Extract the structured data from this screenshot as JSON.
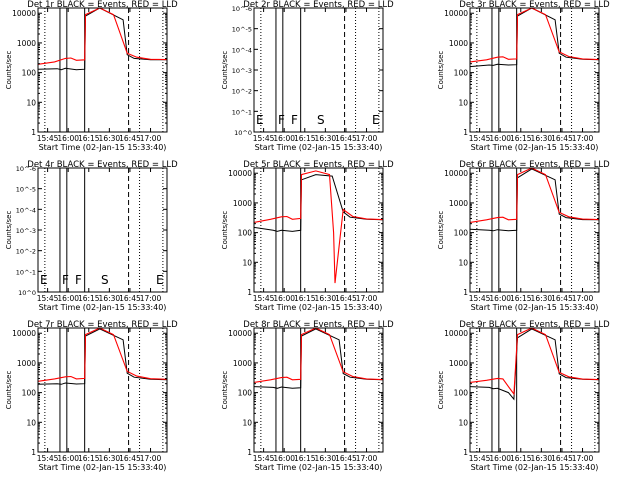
{
  "chart_data": {
    "type": "line",
    "x_tick_labels": [
      "15:45",
      "16:00",
      "16:15",
      "16:30",
      "16:45",
      "17:00"
    ],
    "x_tick_minutes": [
      945,
      960,
      975,
      990,
      1005,
      1020
    ],
    "xlim_minutes": [
      938,
      1032
    ],
    "xlabel": "Start Time (02-Jan-15 15:33:40)",
    "ylabel": "Counts/sec",
    "yscale": "log",
    "ylim": [
      1,
      15000
    ],
    "y_tick_labels": [
      "1",
      "10",
      "100",
      "1000",
      "10000"
    ],
    "sci_tick_labels": [
      "10^0",
      "10^-1",
      "10^-2",
      "10^-3",
      "10^-4",
      "10^-5",
      "10^-6"
    ],
    "series_colors": {
      "events": "#000000",
      "lld": "#ff0000"
    },
    "vertical_lines": {
      "solid_minutes": [
        954,
        959,
        972
      ],
      "dashed_minutes": [
        1004
      ],
      "dotted_minutes": [
        943,
        1012,
        1029
      ]
    },
    "markers": [
      "E",
      "F",
      "F",
      "S",
      "E"
    ],
    "panels": [
      {
        "title": "Det 1r BLACK = Events, RED = LLD",
        "axis": "counts",
        "events": [
          [
            938,
            130
          ],
          [
            952,
            135
          ],
          [
            955,
            125
          ],
          [
            958,
            140
          ],
          [
            966,
            125
          ],
          [
            972,
            130
          ],
          [
            972.6,
            8000
          ],
          [
            983,
            15000
          ],
          [
            1000,
            6000
          ],
          [
            1003,
            400
          ],
          [
            1008,
            300
          ],
          [
            1020,
            270
          ],
          [
            1032,
            270
          ]
        ],
        "lld": [
          [
            938,
            190
          ],
          [
            950,
            230
          ],
          [
            958,
            300
          ],
          [
            962,
            310
          ],
          [
            966,
            260
          ],
          [
            972,
            270
          ],
          [
            972.6,
            9000
          ],
          [
            983,
            15000
          ],
          [
            993,
            9000
          ],
          [
            1003,
            450
          ],
          [
            1010,
            330
          ],
          [
            1020,
            280
          ],
          [
            1032,
            275
          ]
        ],
        "show_markers": false
      },
      {
        "title": "Det 2r BLACK = Events, RED = LLD",
        "axis": "sci",
        "events": [],
        "lld": [],
        "show_markers": true
      },
      {
        "title": "Det 3r BLACK = Events, RED = LLD",
        "axis": "counts",
        "events": [
          [
            938,
            160
          ],
          [
            952,
            180
          ],
          [
            955,
            175
          ],
          [
            958,
            190
          ],
          [
            966,
            180
          ],
          [
            972,
            185
          ],
          [
            972.6,
            8000
          ],
          [
            983,
            15000
          ],
          [
            1000,
            6000
          ],
          [
            1003,
            450
          ],
          [
            1008,
            330
          ],
          [
            1020,
            280
          ],
          [
            1032,
            270
          ]
        ],
        "lld": [
          [
            938,
            230
          ],
          [
            950,
            270
          ],
          [
            958,
            330
          ],
          [
            962,
            340
          ],
          [
            966,
            280
          ],
          [
            972,
            290
          ],
          [
            972.6,
            9000
          ],
          [
            983,
            15000
          ],
          [
            993,
            9000
          ],
          [
            1003,
            500
          ],
          [
            1010,
            350
          ],
          [
            1020,
            290
          ],
          [
            1032,
            275
          ]
        ],
        "show_markers": false
      },
      {
        "title": "Det 4r BLACK = Events, RED = LLD",
        "axis": "sci",
        "events": [],
        "lld": [],
        "show_markers": true
      },
      {
        "title": "Det 5r BLACK = Events, RED = LLD",
        "axis": "counts",
        "events": [
          [
            938,
            150
          ],
          [
            952,
            120
          ],
          [
            955,
            110
          ],
          [
            958,
            120
          ],
          [
            966,
            110
          ],
          [
            972,
            120
          ],
          [
            972.6,
            6000
          ],
          [
            983,
            9000
          ],
          [
            995,
            8000
          ],
          [
            1003,
            500
          ],
          [
            1008,
            330
          ],
          [
            1020,
            280
          ],
          [
            1032,
            270
          ]
        ],
        "lld": [
          [
            938,
            220
          ],
          [
            950,
            280
          ],
          [
            958,
            340
          ],
          [
            962,
            350
          ],
          [
            966,
            280
          ],
          [
            972,
            300
          ],
          [
            972.6,
            9000
          ],
          [
            983,
            12000
          ],
          [
            993,
            9000
          ],
          [
            996,
            100
          ],
          [
            997,
            2
          ],
          [
            1003,
            600
          ],
          [
            1010,
            350
          ],
          [
            1020,
            290
          ],
          [
            1032,
            275
          ]
        ],
        "show_markers": false
      },
      {
        "title": "Det 6r BLACK = Events, RED = LLD",
        "axis": "counts",
        "events": [
          [
            938,
            130
          ],
          [
            952,
            120
          ],
          [
            955,
            115
          ],
          [
            958,
            125
          ],
          [
            966,
            115
          ],
          [
            972,
            120
          ],
          [
            972.6,
            7000
          ],
          [
            983,
            14000
          ],
          [
            1000,
            6000
          ],
          [
            1003,
            420
          ],
          [
            1008,
            320
          ],
          [
            1020,
            275
          ],
          [
            1032,
            270
          ]
        ],
        "lld": [
          [
            938,
            220
          ],
          [
            950,
            270
          ],
          [
            958,
            320
          ],
          [
            962,
            330
          ],
          [
            966,
            270
          ],
          [
            972,
            280
          ],
          [
            972.6,
            9000
          ],
          [
            983,
            15000
          ],
          [
            993,
            9000
          ],
          [
            1003,
            480
          ],
          [
            1010,
            340
          ],
          [
            1020,
            285
          ],
          [
            1032,
            275
          ]
        ],
        "show_markers": false
      },
      {
        "title": "Det 7r BLACK = Events, RED = LLD",
        "axis": "counts",
        "events": [
          [
            938,
            190
          ],
          [
            952,
            200
          ],
          [
            955,
            190
          ],
          [
            958,
            210
          ],
          [
            966,
            195
          ],
          [
            972,
            200
          ],
          [
            972.6,
            8000
          ],
          [
            983,
            14000
          ],
          [
            1000,
            6000
          ],
          [
            1003,
            450
          ],
          [
            1008,
            330
          ],
          [
            1020,
            280
          ],
          [
            1032,
            270
          ]
        ],
        "lld": [
          [
            938,
            240
          ],
          [
            950,
            290
          ],
          [
            958,
            340
          ],
          [
            962,
            350
          ],
          [
            966,
            290
          ],
          [
            972,
            300
          ],
          [
            972.6,
            9000
          ],
          [
            983,
            15000
          ],
          [
            993,
            9000
          ],
          [
            1003,
            520
          ],
          [
            1010,
            360
          ],
          [
            1020,
            295
          ],
          [
            1032,
            280
          ]
        ],
        "show_markers": false
      },
      {
        "title": "Det 8r BLACK = Events, RED = LLD",
        "axis": "counts",
        "events": [
          [
            938,
            160
          ],
          [
            952,
            150
          ],
          [
            955,
            140
          ],
          [
            958,
            155
          ],
          [
            966,
            140
          ],
          [
            972,
            145
          ],
          [
            972.6,
            8000
          ],
          [
            983,
            14000
          ],
          [
            1000,
            6000
          ],
          [
            1003,
            440
          ],
          [
            1008,
            330
          ],
          [
            1020,
            280
          ],
          [
            1032,
            270
          ]
        ],
        "lld": [
          [
            938,
            220
          ],
          [
            950,
            270
          ],
          [
            958,
            320
          ],
          [
            962,
            330
          ],
          [
            966,
            270
          ],
          [
            972,
            280
          ],
          [
            972.6,
            9000
          ],
          [
            983,
            15000
          ],
          [
            993,
            9000
          ],
          [
            1003,
            500
          ],
          [
            1010,
            350
          ],
          [
            1020,
            290
          ],
          [
            1032,
            275
          ]
        ],
        "show_markers": false
      },
      {
        "title": "Det 9r BLACK = Events, RED = LLD",
        "axis": "counts",
        "events": [
          [
            938,
            160
          ],
          [
            952,
            150
          ],
          [
            955,
            135
          ],
          [
            958,
            140
          ],
          [
            966,
            100
          ],
          [
            970,
            60
          ],
          [
            972.6,
            7000
          ],
          [
            983,
            14000
          ],
          [
            1000,
            6000
          ],
          [
            1003,
            430
          ],
          [
            1008,
            320
          ],
          [
            1020,
            280
          ],
          [
            1032,
            270
          ]
        ],
        "lld": [
          [
            938,
            220
          ],
          [
            950,
            260
          ],
          [
            958,
            300
          ],
          [
            962,
            290
          ],
          [
            966,
            160
          ],
          [
            970,
            90
          ],
          [
            972.6,
            9000
          ],
          [
            983,
            15000
          ],
          [
            993,
            9000
          ],
          [
            1003,
            480
          ],
          [
            1010,
            340
          ],
          [
            1020,
            285
          ],
          [
            1032,
            275
          ]
        ],
        "show_markers": false
      }
    ]
  }
}
